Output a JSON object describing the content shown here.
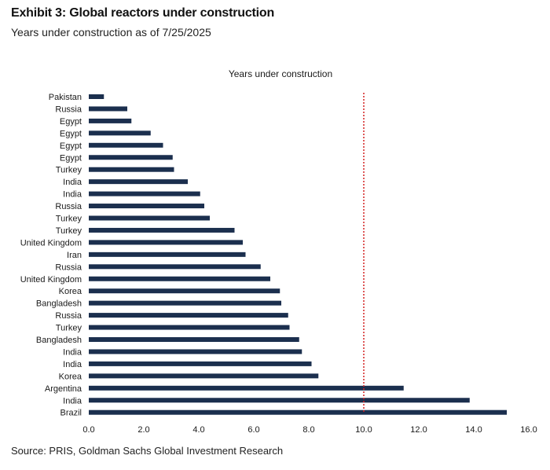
{
  "header": {
    "title": "Exhibit 3: Global reactors under construction",
    "subtitle": "Years under construction as of 7/25/2025"
  },
  "footer": {
    "source": "Source: PRIS, Goldman Sachs Global Investment Research"
  },
  "colors": {
    "bar": "#1b2f4e",
    "reference_line": "#d42020",
    "text": "#1a1a1a"
  },
  "chart_data": {
    "type": "bar",
    "orientation": "horizontal",
    "title": "Years under construction",
    "categories": [
      "Pakistan",
      "Russia",
      "Egypt",
      "Egypt",
      "Egypt",
      "Egypt",
      "Turkey",
      "India",
      "India",
      "Russia",
      "Turkey",
      "Turkey",
      "United Kingdom",
      "Iran",
      "Russia",
      "United Kingdom",
      "Korea",
      "Bangladesh",
      "Russia",
      "Turkey",
      "Bangladesh",
      "India",
      "India",
      "Korea",
      "Argentina",
      "India",
      "Brazil"
    ],
    "values": [
      0.55,
      1.4,
      1.55,
      2.25,
      2.7,
      3.05,
      3.1,
      3.6,
      4.05,
      4.2,
      4.4,
      5.3,
      5.6,
      5.7,
      6.25,
      6.6,
      6.95,
      7.0,
      7.25,
      7.3,
      7.65,
      7.75,
      8.1,
      8.35,
      11.45,
      13.85,
      15.2
    ],
    "xlim": [
      0,
      16
    ],
    "x_ticks": [
      "0.0",
      "2.0",
      "4.0",
      "6.0",
      "8.0",
      "10.0",
      "12.0",
      "14.0",
      "16.0"
    ],
    "reference_line": {
      "value": 10.0,
      "style": "dotted"
    },
    "grid": false,
    "legend": "none"
  }
}
